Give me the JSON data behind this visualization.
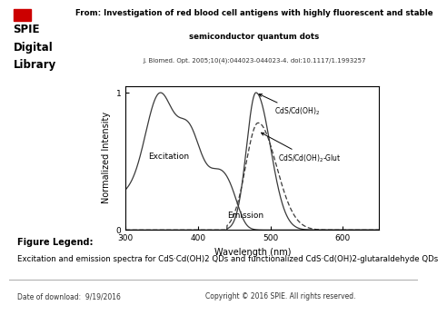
{
  "title_line1": "From: Investigation of red blood cell antigens with highly fluorescent and stable",
  "title_line2": "semiconductor quantum dots",
  "title_ref": "J. Biomed. Opt. 2005;10(4):044023-044023-4. doi:10.1117/1.1993257",
  "xlabel": "Wavelength (nm)",
  "ylabel": "Normalized Intensity",
  "xlim": [
    300,
    650
  ],
  "ylim": [
    0,
    1.05
  ],
  "xticks": [
    300,
    400,
    500,
    600
  ],
  "yticks": [
    0,
    1
  ],
  "figure_legend_title": "Figure Legend:",
  "figure_legend_text": "Excitation and emission spectra for CdS·Cd(OH)2 QDs and functionalized CdS·Cd(OH)2-glutaraldehyde QDs",
  "footer_left": "Date of download:  9/19/2016",
  "footer_right": "Copyright © 2016 SPIE. All rights reserved.",
  "ann1_text": "CdS/Cd(OH)",
  "ann1_sub": "2",
  "ann2_text": "CdS/Cd(OH)",
  "ann2_sub": "2",
  "ann2_suffix": "-Glut",
  "ann3": "Excitation",
  "ann4": "Emission",
  "dark_color": "#3a3a3a",
  "mid_color": "#888888",
  "background": "#ffffff",
  "logo_red": "#cc0000",
  "footer_bg": "#e8e8e8"
}
